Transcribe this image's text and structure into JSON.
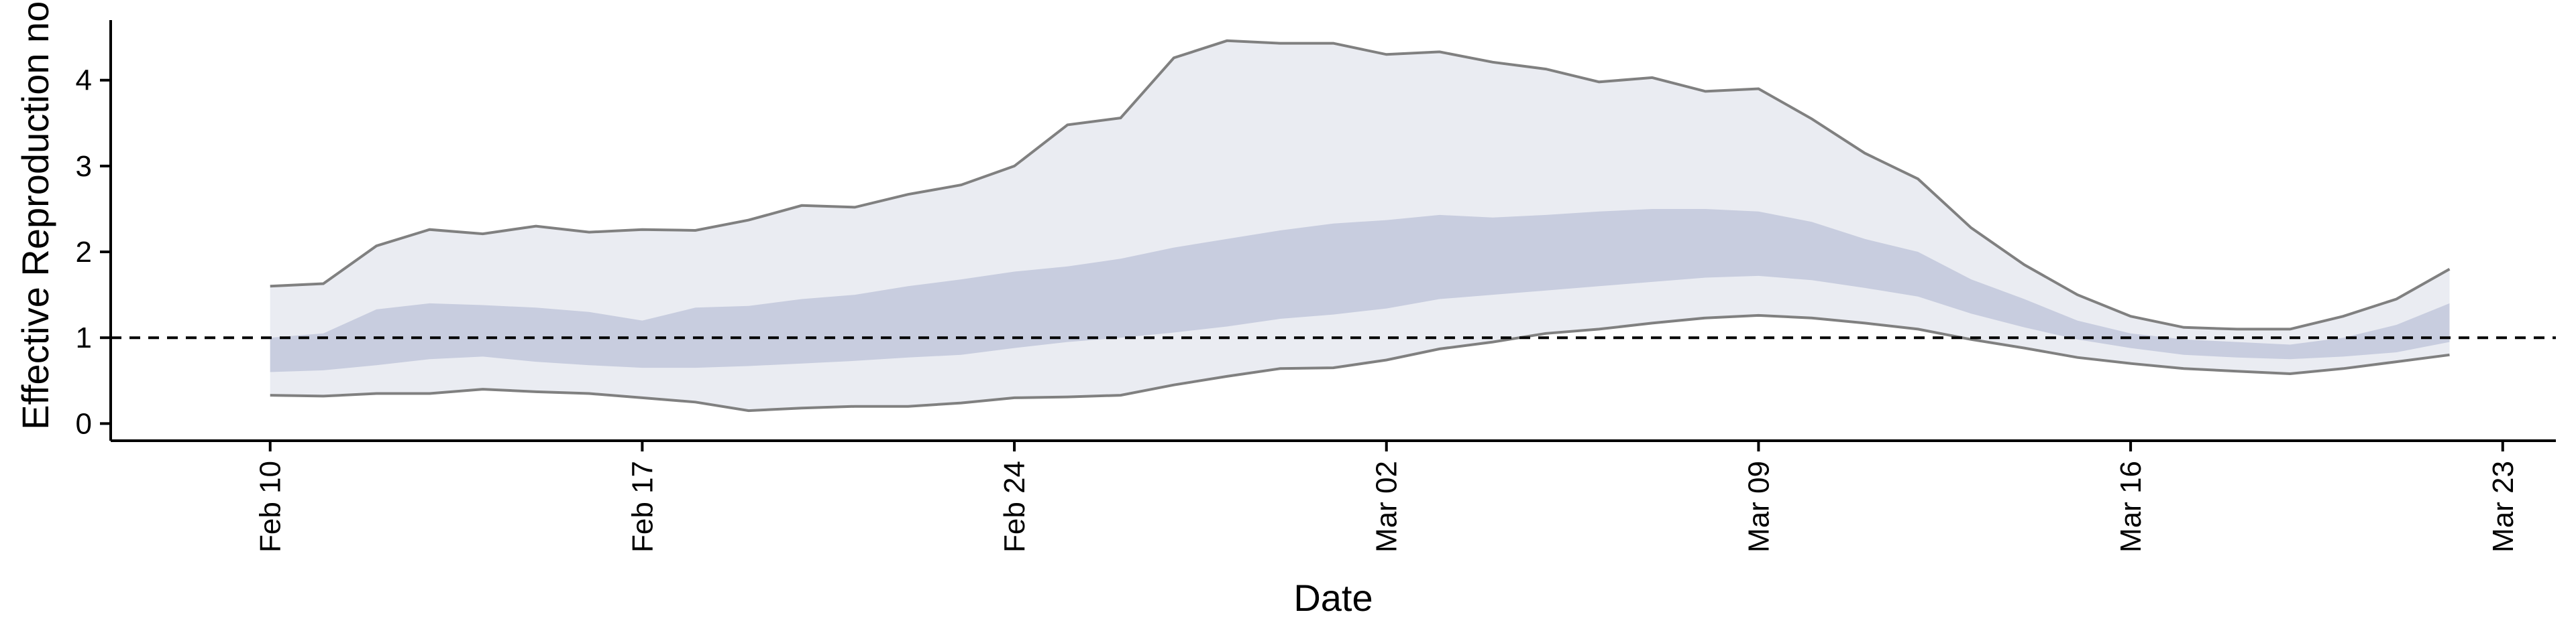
{
  "chart_data": {
    "type": "area",
    "title": "",
    "xlabel": "Date",
    "ylabel": "Effective Reproduction no.",
    "xlim": [
      "2020-02-07",
      "2020-03-24"
    ],
    "ylim": [
      -0.2,
      4.7
    ],
    "x_ticks": [
      "2020-02-10",
      "2020-02-17",
      "2020-02-24",
      "2020-03-02",
      "2020-03-09",
      "2020-03-16",
      "2020-03-23"
    ],
    "x_tick_labels": [
      "Feb 10",
      "Feb 17",
      "Feb 24",
      "Mar 02",
      "Mar 09",
      "Mar 16",
      "Mar 23"
    ],
    "y_ticks": [
      0,
      1,
      2,
      3,
      4
    ],
    "y_tick_labels": [
      "0",
      "1",
      "2",
      "3",
      "4"
    ],
    "reference_line": 1,
    "grid": false,
    "colors": {
      "outer_band": "#eaecf2",
      "inner_band": "#c8cddf",
      "bound_line": "#808080",
      "reference_line": "#000000"
    },
    "dates": [
      "2020-02-10",
      "2020-02-11",
      "2020-02-12",
      "2020-02-13",
      "2020-02-14",
      "2020-02-15",
      "2020-02-16",
      "2020-02-17",
      "2020-02-18",
      "2020-02-19",
      "2020-02-20",
      "2020-02-21",
      "2020-02-22",
      "2020-02-23",
      "2020-02-24",
      "2020-02-25",
      "2020-02-26",
      "2020-02-27",
      "2020-02-28",
      "2020-02-29",
      "2020-03-01",
      "2020-03-02",
      "2020-03-03",
      "2020-03-04",
      "2020-03-05",
      "2020-03-06",
      "2020-03-07",
      "2020-03-08",
      "2020-03-09",
      "2020-03-10",
      "2020-03-11",
      "2020-03-12",
      "2020-03-13",
      "2020-03-14",
      "2020-03-15",
      "2020-03-16",
      "2020-03-17",
      "2020-03-18",
      "2020-03-19",
      "2020-03-20",
      "2020-03-21",
      "2020-03-22"
    ],
    "series": [
      {
        "values_upper_outer": [
          1.6,
          1.63,
          2.07,
          2.26,
          2.21,
          2.3,
          2.23,
          2.26,
          2.25,
          2.37,
          2.54,
          2.52,
          2.67,
          2.78,
          3.0,
          3.48,
          3.56,
          4.26,
          4.46,
          4.43,
          4.43,
          4.3,
          4.33,
          4.21,
          4.13,
          3.98,
          4.03,
          3.87,
          3.9,
          3.55,
          3.15,
          2.85,
          2.28,
          1.85,
          1.5,
          1.25,
          1.12,
          1.1,
          1.1,
          1.25,
          1.45,
          1.8
        ]
      },
      {
        "values_upper_inner": [
          1.0,
          1.05,
          1.33,
          1.4,
          1.38,
          1.35,
          1.3,
          1.2,
          1.35,
          1.37,
          1.45,
          1.5,
          1.6,
          1.68,
          1.77,
          1.83,
          1.92,
          2.05,
          2.15,
          2.25,
          2.33,
          2.37,
          2.43,
          2.4,
          2.43,
          2.47,
          2.5,
          2.5,
          2.47,
          2.35,
          2.15,
          2.0,
          1.68,
          1.45,
          1.2,
          1.05,
          0.98,
          0.95,
          0.92,
          1.0,
          1.15,
          1.4
        ]
      },
      {
        "values_lower_inner": [
          0.6,
          0.62,
          0.68,
          0.75,
          0.78,
          0.72,
          0.68,
          0.65,
          0.65,
          0.67,
          0.7,
          0.73,
          0.77,
          0.8,
          0.88,
          0.95,
          1.0,
          1.06,
          1.13,
          1.22,
          1.27,
          1.34,
          1.45,
          1.5,
          1.55,
          1.6,
          1.65,
          1.7,
          1.72,
          1.67,
          1.58,
          1.48,
          1.28,
          1.12,
          0.98,
          0.88,
          0.8,
          0.77,
          0.75,
          0.78,
          0.83,
          0.95
        ]
      },
      {
        "values_lower_outer": [
          0.33,
          0.32,
          0.35,
          0.35,
          0.4,
          0.37,
          0.35,
          0.3,
          0.25,
          0.15,
          0.18,
          0.2,
          0.2,
          0.24,
          0.3,
          0.31,
          0.33,
          0.45,
          0.55,
          0.64,
          0.65,
          0.74,
          0.87,
          0.95,
          1.05,
          1.1,
          1.17,
          1.23,
          1.26,
          1.23,
          1.17,
          1.1,
          0.98,
          0.88,
          0.77,
          0.7,
          0.64,
          0.61,
          0.58,
          0.64,
          0.72,
          0.8
        ]
      }
    ]
  }
}
